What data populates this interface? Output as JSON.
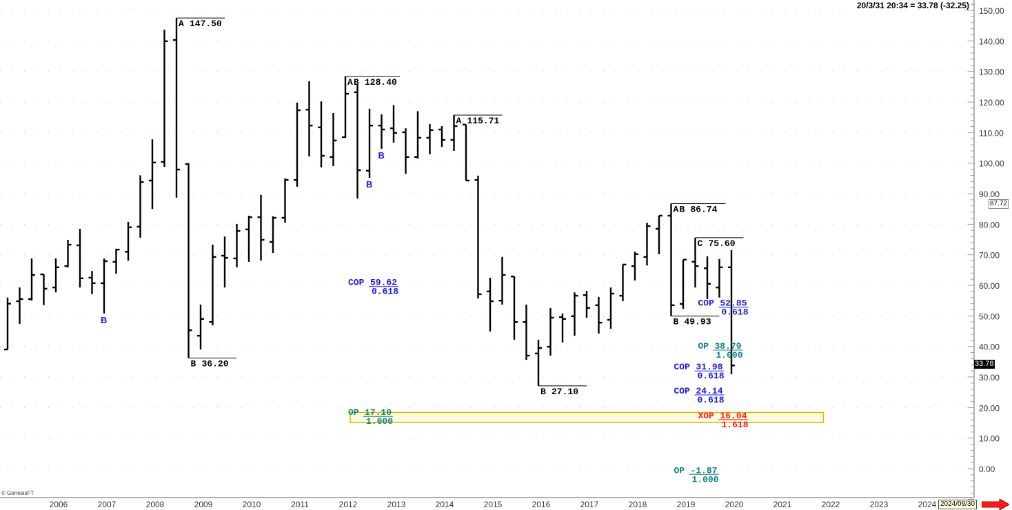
{
  "header": {
    "readout": "20/3/31 20:34 = 33.78 (-32.25)"
  },
  "footer": {
    "copyright": "© GenesisFT",
    "date_tooltip": "2024/09/30"
  },
  "price_tags": {
    "last": "33.78",
    "cursor": "87.72"
  },
  "colors": {
    "bars": "#000000",
    "swing_label": "#000000",
    "cop": "#1a1adc",
    "op": "#13807f",
    "xop": "#ff1a1a",
    "marker_b": "#1a1adc",
    "zone_fill": "#fffbe0",
    "zone_border": "#d4b800",
    "arrow": "#ff1a1a"
  },
  "icons": {
    "scroll_right": "red-arrow-right-icon"
  },
  "chart_data": {
    "type": "ohlc",
    "interval": "quarterly",
    "ylim": [
      -10,
      152
    ],
    "y_ticks": [
      "150.00",
      "140.00",
      "130.00",
      "120.00",
      "110.00",
      "100.00",
      "90.00",
      "80.00",
      "70.00",
      "60.00",
      "50.00",
      "40.00",
      "30.00",
      "20.00",
      "10.00",
      "0.00"
    ],
    "x_ticks": [
      "2006",
      "2007",
      "2008",
      "2009",
      "2010",
      "2011",
      "2012",
      "2013",
      "2014",
      "2015",
      "2016",
      "2017",
      "2018",
      "2019",
      "2020",
      "2021",
      "2022",
      "2023",
      "2024"
    ],
    "grid": "horizontal-dotted",
    "columns": [
      "quarter",
      "open",
      "high",
      "low",
      "close"
    ],
    "bars": [
      [
        "2005Q1",
        39,
        56,
        39,
        54
      ],
      [
        "2005Q2",
        54.8,
        59.3,
        47.4,
        55.5
      ],
      [
        "2005Q3",
        55.5,
        68.8,
        55,
        63.4
      ],
      [
        "2005Q4",
        63.6,
        63.6,
        53.5,
        58.9
      ],
      [
        "2006Q1",
        59.3,
        68.8,
        57.7,
        65.9
      ],
      [
        "2006Q2",
        66.3,
        74.9,
        65.9,
        73.3
      ],
      [
        "2006Q3",
        73.1,
        78.5,
        59.3,
        62.3
      ],
      [
        "2006Q4",
        62.5,
        64.7,
        57.1,
        60.7
      ],
      [
        "2007Q1",
        60.7,
        68.8,
        50.8,
        67.9
      ],
      [
        "2007Q2",
        67.7,
        72,
        63.8,
        71.7
      ],
      [
        "2007Q3",
        71,
        80.8,
        68.1,
        79
      ],
      [
        "2007Q4",
        79.2,
        96,
        75.6,
        93.8
      ],
      [
        "2008Q1",
        94.3,
        107.8,
        85,
        100.2
      ],
      [
        "2008Q2",
        100.4,
        143.7,
        98.8,
        139.9
      ],
      [
        "2008Q3",
        140.3,
        147.5,
        88.7,
        97.9
      ],
      [
        "2008Q4",
        99.7,
        100,
        36.2,
        45.3
      ],
      [
        "2009Q1",
        43.5,
        53.7,
        39,
        49
      ],
      [
        "2009Q2",
        48,
        73.3,
        46.9,
        69.3
      ],
      [
        "2009Q3",
        69.7,
        76,
        59.3,
        69
      ],
      [
        "2009Q4",
        68.8,
        80.1,
        65.9,
        77.8
      ],
      [
        "2010Q1",
        78.3,
        82.8,
        67.7,
        82.3
      ],
      [
        "2010Q2",
        82.3,
        89.6,
        68.1,
        74.9
      ],
      [
        "2010Q3",
        74.2,
        82.6,
        70.6,
        82.1
      ],
      [
        "2010Q4",
        82.1,
        95,
        80.5,
        94.5
      ],
      [
        "2011Q1",
        94.5,
        119.8,
        92.3,
        117.3
      ],
      [
        "2011Q2",
        117.5,
        126.8,
        102.2,
        112.3
      ],
      [
        "2011Q3",
        111.7,
        120.2,
        98.6,
        102.4
      ],
      [
        "2011Q4",
        102,
        116.4,
        99,
        107.4
      ],
      [
        "2012Q1",
        108.5,
        128.4,
        108.3,
        122.7
      ],
      [
        "2012Q2",
        123.2,
        125.7,
        88.4,
        97.7
      ],
      [
        "2012Q3",
        97.5,
        117.8,
        95.2,
        112.3
      ],
      [
        "2012Q4",
        112.3,
        116,
        104.7,
        111
      ],
      [
        "2013Q1",
        111.4,
        119,
        106.7,
        109.9
      ],
      [
        "2013Q2",
        110.1,
        111.4,
        96.5,
        102
      ],
      [
        "2013Q3",
        102,
        117,
        101.5,
        108.3
      ],
      [
        "2013Q4",
        108.3,
        112.8,
        102.9,
        110.8
      ],
      [
        "2014Q1",
        111,
        112.1,
        105.3,
        107.6
      ],
      [
        "2014Q2",
        107.6,
        115.71,
        104,
        112.1
      ],
      [
        "2014Q3",
        112.6,
        112.6,
        94.3,
        94.3
      ],
      [
        "2014Q4",
        94.5,
        95.9,
        55.7,
        57.1
      ],
      [
        "2015Q1",
        58,
        62.5,
        44.9,
        54.8
      ],
      [
        "2015Q2",
        55,
        69.3,
        53.7,
        63.4
      ],
      [
        "2015Q3",
        62.9,
        62.9,
        42.2,
        48
      ],
      [
        "2015Q4",
        48,
        53.7,
        35.6,
        37
      ],
      [
        "2016Q1",
        37.7,
        42.2,
        27.1,
        39.5
      ],
      [
        "2016Q2",
        39.9,
        52.6,
        37,
        49.4
      ],
      [
        "2016Q3",
        49.6,
        50.8,
        41.3,
        49
      ],
      [
        "2016Q4",
        49.9,
        57.7,
        43.5,
        56.6
      ],
      [
        "2017Q1",
        56.8,
        58.2,
        49.4,
        52.6
      ],
      [
        "2017Q2",
        53.5,
        56.2,
        44.2,
        47.8
      ],
      [
        "2017Q3",
        48.7,
        59.3,
        45.8,
        57.3
      ],
      [
        "2017Q4",
        56.6,
        66.8,
        54.8,
        66.8
      ],
      [
        "2018Q1",
        66.3,
        71,
        61.6,
        70.2
      ],
      [
        "2018Q2",
        69.3,
        80.5,
        66.5,
        79.4
      ],
      [
        "2018Q3",
        78.5,
        82.8,
        70.2,
        82.8
      ],
      [
        "2018Q4",
        82.8,
        86.74,
        49.93,
        53.5
      ],
      [
        "2019Q1",
        53.9,
        68.4,
        52.3,
        68.4
      ],
      [
        "2019Q2",
        67.7,
        75.6,
        59.3,
        66.3
      ],
      [
        "2019Q3",
        65.6,
        69.5,
        55.5,
        60.5
      ],
      [
        "2019Q4",
        59.3,
        68.6,
        56,
        65.9
      ],
      [
        "2020Q1",
        65.9,
        71.5,
        30.9,
        33.78
      ]
    ],
    "swing_labels": [
      {
        "letters": [
          "A"
        ],
        "price": "147.50",
        "x": "2008Q3",
        "value": 147.5
      },
      {
        "letters": [
          "B"
        ],
        "price": "36.20",
        "x": "2008Q4",
        "value": 36.2
      },
      {
        "letters": [
          "A",
          "B"
        ],
        "price": "128.40",
        "x": "2012Q1",
        "value": 128.4
      },
      {
        "letters": [
          "A"
        ],
        "price": "115.71",
        "x": "2014Q2",
        "value": 115.71
      },
      {
        "letters": [
          "B"
        ],
        "price": "27.10",
        "x": "2016Q1",
        "value": 27.1
      },
      {
        "letters": [
          "A",
          "B"
        ],
        "price": "86.74",
        "x": "2018Q4",
        "value": 86.74
      },
      {
        "letters": [
          "B"
        ],
        "price": "49.93",
        "x": "2018Q4",
        "value": 49.93
      },
      {
        "letters": [
          "C"
        ],
        "price": "75.60",
        "x": "2019Q2",
        "value": 75.6
      }
    ],
    "b_markers": [
      {
        "text": "B",
        "x": "2007Q1",
        "below_low": 50.8
      },
      {
        "text": "B",
        "x": "2012Q3",
        "below_low": 95.2
      },
      {
        "text": "B",
        "x": "2012Q4",
        "below_low": 104.7
      }
    ],
    "fib_targets": [
      {
        "kind": "COP",
        "value": "59.62",
        "ratio": "0.618",
        "x": "2012Q1",
        "style": "cop"
      },
      {
        "kind": "OP",
        "value": "17.10",
        "ratio": "1.000",
        "x": "2012Q1",
        "style": "op"
      },
      {
        "kind": "COP",
        "value": "52.85",
        "ratio": "0.618",
        "x": "2019Q2",
        "style": "cop"
      },
      {
        "kind": "OP",
        "value": "38.79",
        "ratio": "1.000",
        "x": "2019Q2",
        "style": "op"
      },
      {
        "kind": "COP",
        "value": "31.98",
        "ratio": "0.618",
        "x": "2018Q4",
        "style": "cop"
      },
      {
        "kind": "COP",
        "value": "24.14",
        "ratio": "0.618",
        "x": "2018Q4",
        "style": "cop"
      },
      {
        "kind": "XOP",
        "value": "16.04",
        "ratio": "1.618",
        "x": "2019Q2",
        "style": "xop"
      },
      {
        "kind": "OP",
        "value": "-1.87",
        "ratio": "1.000",
        "x": "2018Q4",
        "style": "op"
      }
    ],
    "target_zone": {
      "price_range": [
        15.1,
        18.4
      ],
      "x_range": [
        "2012Q1",
        "2021Q4"
      ]
    }
  }
}
